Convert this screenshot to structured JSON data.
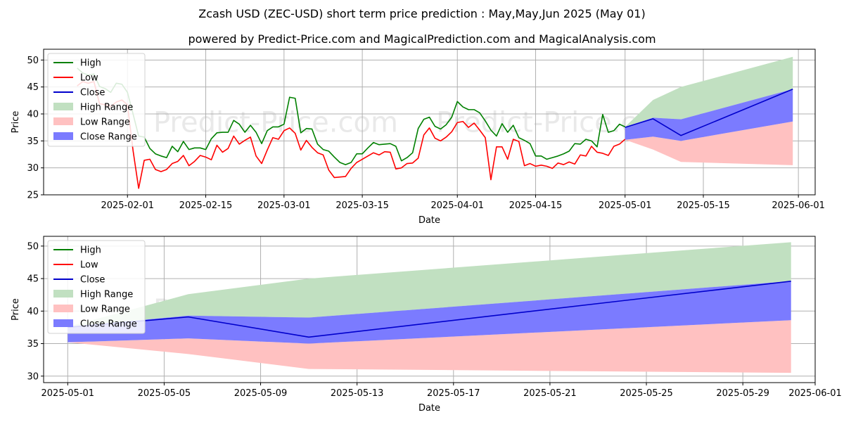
{
  "title": "Zcash USD (ZEC-USD) short term price prediction : May,May,Jun 2025 (May 01)",
  "subtitle": "powered by Predict-Price.com and MagicalPrediction.com and MagicalAnalysis.com",
  "watermark": "Predict-Price.com",
  "legend": [
    "High",
    "Low",
    "Close",
    "High Range",
    "Low Range",
    "Close Range"
  ],
  "colors": {
    "high": "#008000",
    "low": "#ff0000",
    "close": "#0000cc",
    "high_range": "#c1e0c1",
    "low_range": "#ffc1c1",
    "close_range": "#7b7bff"
  },
  "chart_data": [
    {
      "type": "line",
      "xlabel": "Date",
      "ylabel": "Price",
      "xlim": [
        "2025-01-17",
        "2025-06-04"
      ],
      "ylim": [
        25,
        52
      ],
      "yticks": [
        25,
        30,
        35,
        40,
        45,
        50
      ],
      "xticks": [
        "2025-02-01",
        "2025-02-15",
        "2025-03-01",
        "2025-03-15",
        "2025-04-01",
        "2025-04-15",
        "2025-05-01",
        "2025-05-15",
        "2025-06-01"
      ],
      "grid": true,
      "legend_position": "upper-left",
      "history_dates": [
        "2025-01-23",
        "2025-01-24",
        "2025-01-25",
        "2025-01-26",
        "2025-01-27",
        "2025-01-28",
        "2025-01-29",
        "2025-01-30",
        "2025-01-31",
        "2025-02-01",
        "2025-02-02",
        "2025-02-03",
        "2025-02-04",
        "2025-02-05",
        "2025-02-06",
        "2025-02-07",
        "2025-02-08",
        "2025-02-09",
        "2025-02-10",
        "2025-02-11",
        "2025-02-12",
        "2025-02-13",
        "2025-02-14",
        "2025-02-15",
        "2025-02-16",
        "2025-02-17",
        "2025-02-18",
        "2025-02-19",
        "2025-02-20",
        "2025-02-21",
        "2025-02-22",
        "2025-02-23",
        "2025-02-24",
        "2025-02-25",
        "2025-02-26",
        "2025-02-27",
        "2025-02-28",
        "2025-03-01",
        "2025-03-02",
        "2025-03-03",
        "2025-03-04",
        "2025-03-05",
        "2025-03-06",
        "2025-03-07",
        "2025-03-08",
        "2025-03-09",
        "2025-03-10",
        "2025-03-11",
        "2025-03-12",
        "2025-03-13",
        "2025-03-14",
        "2025-03-15",
        "2025-03-16",
        "2025-03-17",
        "2025-03-18",
        "2025-03-19",
        "2025-03-20",
        "2025-03-21",
        "2025-03-22",
        "2025-03-23",
        "2025-03-24",
        "2025-03-25",
        "2025-03-26",
        "2025-03-27",
        "2025-03-28",
        "2025-03-29",
        "2025-03-30",
        "2025-03-31",
        "2025-04-01",
        "2025-04-02",
        "2025-04-03",
        "2025-04-04",
        "2025-04-05",
        "2025-04-06",
        "2025-04-07",
        "2025-04-08",
        "2025-04-09",
        "2025-04-10",
        "2025-04-11",
        "2025-04-12",
        "2025-04-13",
        "2025-04-14",
        "2025-04-15",
        "2025-04-16",
        "2025-04-17",
        "2025-04-18",
        "2025-04-19",
        "2025-04-20",
        "2025-04-21",
        "2025-04-22",
        "2025-04-23",
        "2025-04-24",
        "2025-04-25",
        "2025-04-26",
        "2025-04-27",
        "2025-04-28",
        "2025-04-29",
        "2025-04-30",
        "2025-05-01"
      ],
      "series": [
        {
          "name": "High",
          "values": [
            48.5,
            47.6,
            47.2,
            47.4,
            45.1,
            44.7,
            44.0,
            45.7,
            45.5,
            44.0,
            40.0,
            35.9,
            35.7,
            33.6,
            32.6,
            32.2,
            31.9,
            34.0,
            33.0,
            34.9,
            33.4,
            33.7,
            33.7,
            33.4,
            35.4,
            36.5,
            36.6,
            36.6,
            38.8,
            38.1,
            36.6,
            37.9,
            36.6,
            34.5,
            36.9,
            37.6,
            37.6,
            38.1,
            43.1,
            42.9,
            36.5,
            37.3,
            37.2,
            34.4,
            33.4,
            33.1,
            32.0,
            31.0,
            30.6,
            31.0,
            32.6,
            32.6,
            33.7,
            34.7,
            34.3,
            34.4,
            34.5,
            34.0,
            31.3,
            31.9,
            32.8,
            37.3,
            39.0,
            39.4,
            37.7,
            37.2,
            38.0,
            39.4,
            42.3,
            41.3,
            40.8,
            40.8,
            40.2,
            38.7,
            37.0,
            35.9,
            38.2,
            36.6,
            37.9,
            35.6,
            35.1,
            34.5,
            32.2,
            32.2,
            31.6,
            31.9,
            32.2,
            32.6,
            33.1,
            34.5,
            34.4,
            35.3,
            35.0,
            33.9,
            39.9,
            36.6,
            36.9,
            38.1,
            37.6
          ]
        },
        {
          "name": "Low",
          "values": [
            45.2,
            46.0,
            45.7,
            46.0,
            41.9,
            41.7,
            41.4,
            42.2,
            42.6,
            41.7,
            33.2,
            26.2,
            31.4,
            31.6,
            29.7,
            29.3,
            29.7,
            30.8,
            31.2,
            32.3,
            30.4,
            31.2,
            32.3,
            32.0,
            31.5,
            34.2,
            32.9,
            33.6,
            35.9,
            34.4,
            35.1,
            35.7,
            32.2,
            30.8,
            33.3,
            35.6,
            35.3,
            36.9,
            37.4,
            36.4,
            33.3,
            35.1,
            33.8,
            32.8,
            32.4,
            29.6,
            28.2,
            28.3,
            28.4,
            29.9,
            31.0,
            31.6,
            32.2,
            32.8,
            32.4,
            33.0,
            32.9,
            29.8,
            30.0,
            30.8,
            30.9,
            31.8,
            36.1,
            37.4,
            35.5,
            35.0,
            35.7,
            36.7,
            38.4,
            38.6,
            37.5,
            38.3,
            37.0,
            35.6,
            27.8,
            33.9,
            33.9,
            31.6,
            35.3,
            34.9,
            30.4,
            30.8,
            30.3,
            30.5,
            30.3,
            29.9,
            30.9,
            30.6,
            31.1,
            30.7,
            32.4,
            32.2,
            34.0,
            32.9,
            32.7,
            32.3,
            34.0,
            34.4,
            35.3
          ]
        },
        {
          "name": "Close",
          "dates": [
            "2025-05-01",
            "2025-05-06",
            "2025-05-11",
            "2025-05-31"
          ],
          "values": [
            37.5,
            39.1,
            36.0,
            44.6
          ]
        }
      ],
      "ranges": [
        {
          "name": "High Range",
          "dates": [
            "2025-05-01",
            "2025-05-06",
            "2025-05-11",
            "2025-05-31"
          ],
          "low": [
            37.6,
            39.3,
            39.0,
            44.6
          ],
          "high": [
            37.6,
            42.6,
            45.0,
            50.6
          ]
        },
        {
          "name": "Low Range",
          "dates": [
            "2025-05-01",
            "2025-05-06",
            "2025-05-11",
            "2025-05-31"
          ],
          "low": [
            35.2,
            33.4,
            31.1,
            30.5
          ],
          "high": [
            35.2,
            35.8,
            35.0,
            38.6
          ]
        },
        {
          "name": "Close Range",
          "dates": [
            "2025-05-01",
            "2025-05-06",
            "2025-05-11",
            "2025-05-31"
          ],
          "low": [
            35.2,
            35.8,
            35.0,
            38.6
          ],
          "high": [
            37.6,
            39.3,
            39.0,
            44.6
          ]
        }
      ]
    },
    {
      "type": "line",
      "xlabel": "Date",
      "ylabel": "Price",
      "xlim": [
        "2025-04-30",
        "2025-06-01"
      ],
      "ylim": [
        29,
        51.5
      ],
      "yticks": [
        30,
        35,
        40,
        45,
        50
      ],
      "xticks": [
        "2025-05-01",
        "2025-05-05",
        "2025-05-09",
        "2025-05-13",
        "2025-05-17",
        "2025-05-21",
        "2025-05-25",
        "2025-05-29",
        "2025-06-01"
      ],
      "grid": true,
      "legend_position": "upper-left",
      "series": [
        {
          "name": "Close",
          "dates": [
            "2025-05-01",
            "2025-05-06",
            "2025-05-11",
            "2025-05-31"
          ],
          "values": [
            37.5,
            39.1,
            36.0,
            44.6
          ]
        }
      ],
      "ranges": [
        {
          "name": "High Range",
          "dates": [
            "2025-05-01",
            "2025-05-06",
            "2025-05-11",
            "2025-05-31"
          ],
          "low": [
            37.6,
            39.3,
            39.0,
            44.6
          ],
          "high": [
            37.6,
            42.6,
            45.0,
            50.6
          ]
        },
        {
          "name": "Low Range",
          "dates": [
            "2025-05-01",
            "2025-05-06",
            "2025-05-11",
            "2025-05-31"
          ],
          "low": [
            35.2,
            33.4,
            31.1,
            30.5
          ],
          "high": [
            35.2,
            35.8,
            35.0,
            38.6
          ]
        },
        {
          "name": "Close Range",
          "dates": [
            "2025-05-01",
            "2025-05-06",
            "2025-05-11",
            "2025-05-31"
          ],
          "low": [
            35.2,
            35.8,
            35.0,
            38.6
          ],
          "high": [
            37.6,
            39.3,
            39.0,
            44.6
          ]
        }
      ]
    }
  ]
}
